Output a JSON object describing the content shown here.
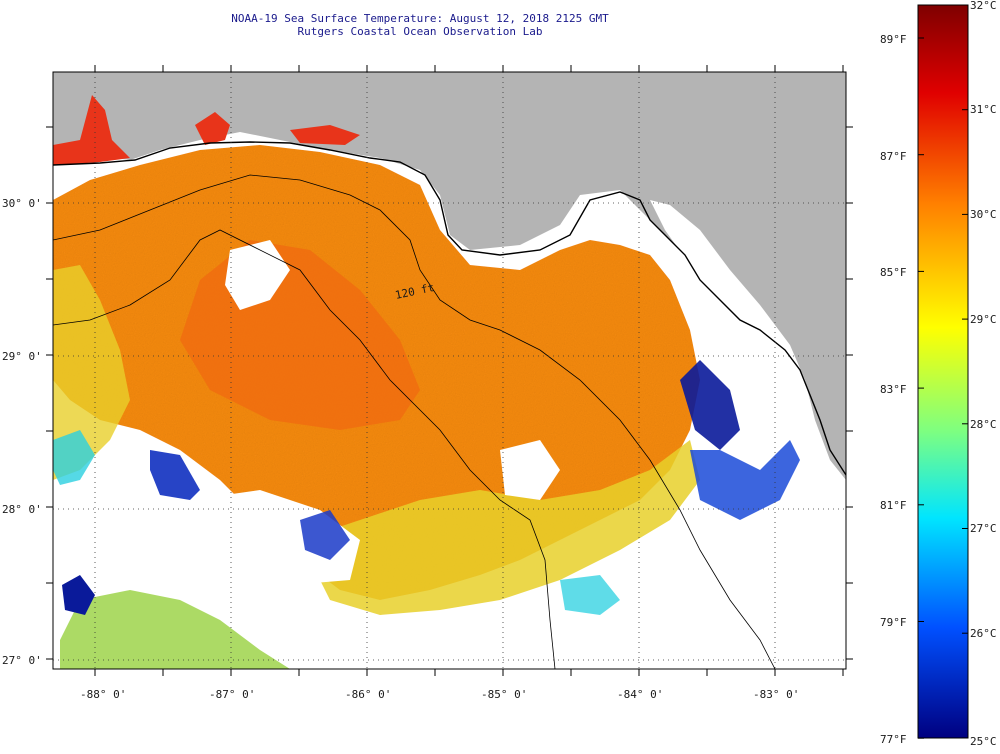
{
  "header": {
    "title": "NOAA-19 Sea Surface Temperature:  August 12, 2018 2125 GMT",
    "subtitle": "Rutgers Coastal Ocean Observation Lab"
  },
  "map": {
    "lon_labels": [
      "-88° 0'",
      "-87° 0'",
      "-86° 0'",
      "-85° 0'",
      "-84° 0'",
      "-83° 0'"
    ],
    "lat_labels": [
      "30° 0'",
      "29° 0'",
      "28° 0'",
      "27° 0'"
    ],
    "isobath_label": "120 ft",
    "colors": {
      "land": "#b4b4b4",
      "cloud": "#ffffff",
      "coast": "#000000"
    }
  },
  "colorbar": {
    "celsius_labels": [
      "32°C",
      "31°C",
      "30°C",
      "29°C",
      "28°C",
      "27°C",
      "26°C",
      "25°C"
    ],
    "fahrenheit_labels": [
      "89°F",
      "87°F",
      "85°F",
      "83°F",
      "81°F",
      "79°F",
      "77°F"
    ],
    "gradient": [
      "#7f0000",
      "#ff0000",
      "#ff7f00",
      "#ffff00",
      "#00e5ff",
      "#0060ff",
      "#000080"
    ]
  }
}
